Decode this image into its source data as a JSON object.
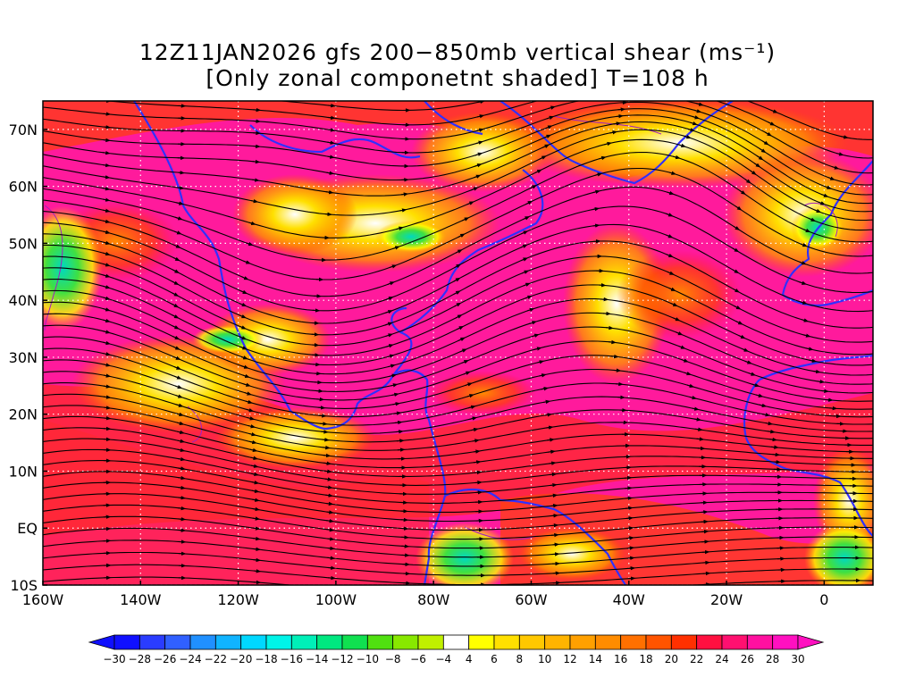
{
  "title": {
    "line1": "12Z11JAN2026 gfs 200−850mb vertical shear (ms⁻¹)",
    "line2": "[Only zonal componetnt shaded] T=108 h"
  },
  "map": {
    "projection": "cylindrical equidistant",
    "lon_range": [
      -160,
      10
    ],
    "lat_range": [
      -10,
      75
    ],
    "grid": true,
    "lat_labels": [
      "70N",
      "60N",
      "50N",
      "40N",
      "30N",
      "20N",
      "10N",
      "EQ",
      "10S"
    ],
    "lat_values": [
      70,
      60,
      50,
      40,
      30,
      20,
      10,
      0,
      -10
    ],
    "lon_labels": [
      "160W",
      "140W",
      "120W",
      "100W",
      "80W",
      "60W",
      "40W",
      "20W",
      "0"
    ],
    "lon_values": [
      -160,
      -140,
      -120,
      -100,
      -80,
      -60,
      -40,
      -20,
      0
    ],
    "field": "zonal component of 200-850mb vertical shear (shaded)",
    "streamlines": "shear vector streamlines (black)",
    "coastline_color": "#3030ff",
    "contour_color": "#a020c0"
  },
  "colorbar": {
    "labels": [
      "-30",
      "-28",
      "-26",
      "-24",
      "-22",
      "-20",
      "-18",
      "-16",
      "-14",
      "-12",
      "-10",
      "-8",
      "-6",
      "-4",
      "4",
      "6",
      "8",
      "10",
      "12",
      "14",
      "16",
      "18",
      "20",
      "22",
      "24",
      "26",
      "28",
      "30"
    ],
    "colors": [
      "#1010ff",
      "#2a3cff",
      "#3060ff",
      "#2090ff",
      "#10b4ff",
      "#00d8ff",
      "#00f4e8",
      "#00f0b8",
      "#00e880",
      "#10e050",
      "#50e010",
      "#88e800",
      "#c0f000",
      "#ffffff",
      "#ffff00",
      "#ffe000",
      "#ffc800",
      "#ffb400",
      "#ffa000",
      "#ff8c00",
      "#ff7000",
      "#ff5400",
      "#ff3000",
      "#ff1040",
      "#ff1070",
      "#ff10a0",
      "#ff10c0"
    ]
  }
}
